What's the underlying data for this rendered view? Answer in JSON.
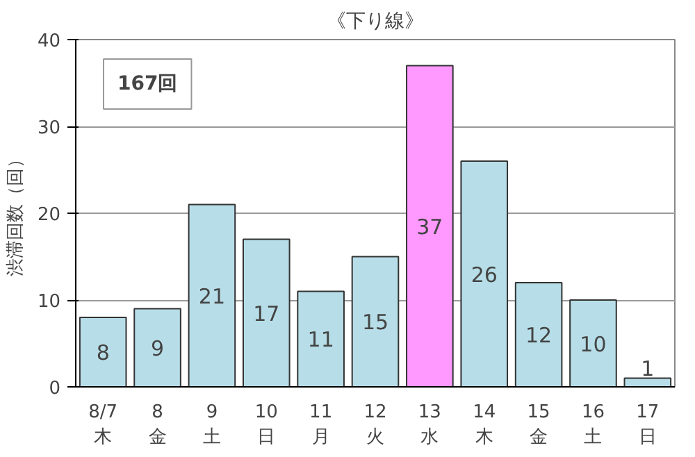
{
  "chart_data": {
    "type": "bar",
    "title": "《下り線》",
    "ylabel": "渋滞回数（回）",
    "categories": [
      "8/7\n木",
      "8\n金",
      "9\n土",
      "10\n日",
      "11\n月",
      "12\n火",
      "13\n水",
      "14\n木",
      "15\n金",
      "16\n土",
      "17\n日"
    ],
    "values": [
      8,
      9,
      21,
      17,
      11,
      15,
      37,
      26,
      12,
      10,
      1
    ],
    "colors": [
      "#b7dee8",
      "#b7dee8",
      "#b7dee8",
      "#b7dee8",
      "#b7dee8",
      "#b7dee8",
      "#ff99ff",
      "#b7dee8",
      "#b7dee8",
      "#b7dee8",
      "#b7dee8"
    ],
    "ylim": [
      0,
      40
    ],
    "yticks": [
      0,
      10,
      20,
      30,
      40
    ],
    "grid": "y",
    "data_labels": true,
    "annotations": [
      "167回"
    ]
  }
}
